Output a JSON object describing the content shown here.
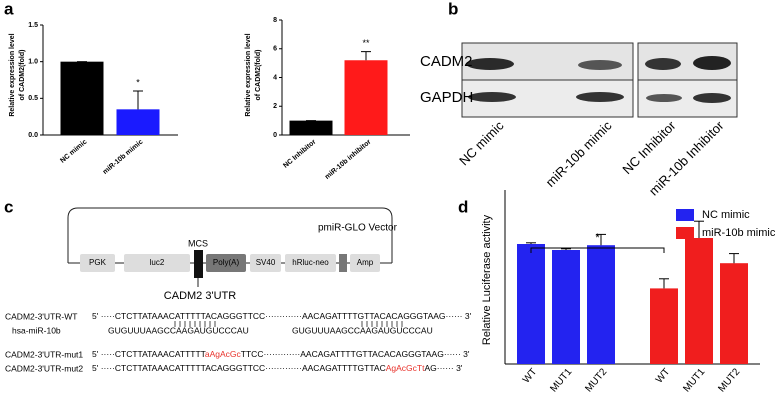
{
  "panel_labels": [
    "a",
    "b",
    "c",
    "d"
  ],
  "chart_data": [
    {
      "type": "bar",
      "ylabel": [
        "Relative expression level",
        "of CADM2(fold)"
      ],
      "categories": [
        "NC mimic",
        "miR-10b mimic"
      ],
      "values": [
        1.0,
        0.35
      ],
      "errors": [
        0,
        0.25
      ],
      "colors": [
        "#000000",
        "#1a1aff"
      ],
      "value_annotations": [
        null,
        "*"
      ],
      "ylim": [
        0,
        1.5
      ],
      "yticks": [
        {
          "value": 0,
          "label": "0.0"
        },
        {
          "value": 0.5,
          "label": "0.5"
        },
        {
          "value": 1,
          "label": "1.0"
        },
        {
          "value": 1.5,
          "label": "1.5"
        }
      ]
    },
    {
      "type": "bar",
      "ylabel": [
        "Relative expression level",
        "of CADM2(fold)"
      ],
      "categories": [
        "NC Inhibitor",
        "miR-10b inhibitor"
      ],
      "values": [
        1.0,
        5.2
      ],
      "errors": [
        0,
        0.6
      ],
      "colors": [
        "#000000",
        "#ff1a1a"
      ],
      "value_annotations": [
        null,
        "**"
      ],
      "ylim": [
        0,
        8
      ],
      "yticks": [
        0,
        2,
        4,
        6,
        8
      ]
    },
    {
      "type": "grouped-bar",
      "ylabel": [
        "Relative Luciferase activity"
      ],
      "ylim": [
        0,
        1.45
      ],
      "annotation": "*",
      "series": [
        {
          "name": "NC mimic",
          "color": "#2323f0",
          "categories": [
            "WT",
            "MUT1",
            "MUT2"
          ],
          "values": [
            1.0,
            0.95,
            0.99
          ],
          "errors": [
            0.01,
            0.01,
            0.09
          ]
        },
        {
          "name": "miR-10b mimic",
          "color": "#f01e1e",
          "categories": [
            "WT",
            "MUT1",
            "MUT2"
          ],
          "values": [
            0.63,
            1.05,
            0.84
          ],
          "errors": [
            0.08,
            0.14,
            0.08
          ]
        }
      ]
    }
  ],
  "blot": {
    "rows": [
      "CADM2",
      "GAPDH"
    ],
    "lanes": [
      "NC mimic",
      "miR-10b mimic",
      "NC Inhibitor",
      "miR-10b Inhibitor"
    ]
  },
  "vector": {
    "title": "pmiR-GLO Vector",
    "elements": [
      "PGK",
      "luc2",
      "Poly(A)",
      "SV40",
      "hRluc-neo",
      "Amp"
    ],
    "site": "MCS",
    "insert": "CADM2 3'UTR"
  },
  "sequences": [
    {
      "label": "CADM2-3'UTR-WT",
      "segments": [
        {
          "text": "5' ·····CTCTTATAAACATTTTTACAGGGTTCC·············AACAGATTTTGTTACACAGGGTAAG······ 3'"
        }
      ]
    },
    {
      "label": "hsa-miR-10b",
      "segments": [
        {
          "text": "GUGUUUAAGCCAAGAUGUCCCAU"
        },
        {
          "text": "GUGUUUAAGCCAAGAUGUCCCAU"
        }
      ]
    },
    {
      "label": "CADM2-3'UTR-mut1",
      "segments": [
        {
          "text": "5' ·····CTCTTATAAACATTTTT"
        },
        {
          "text": "aAgAcGc",
          "color": "#e8312a"
        },
        {
          "text": "TTCC·············AACAGATTTTGTTACACAGGGTAAG······ 3'"
        }
      ]
    },
    {
      "label": "CADM2-3'UTR-mut2",
      "segments": [
        {
          "text": "5' ·····CTCTTATAAACATTTTTACAGGGTTCC·············AACAGATTTTGTTAC"
        },
        {
          "text": "AgAcGcTt",
          "color": "#e8312a"
        },
        {
          "text": "AG······ 3'"
        }
      ]
    }
  ]
}
